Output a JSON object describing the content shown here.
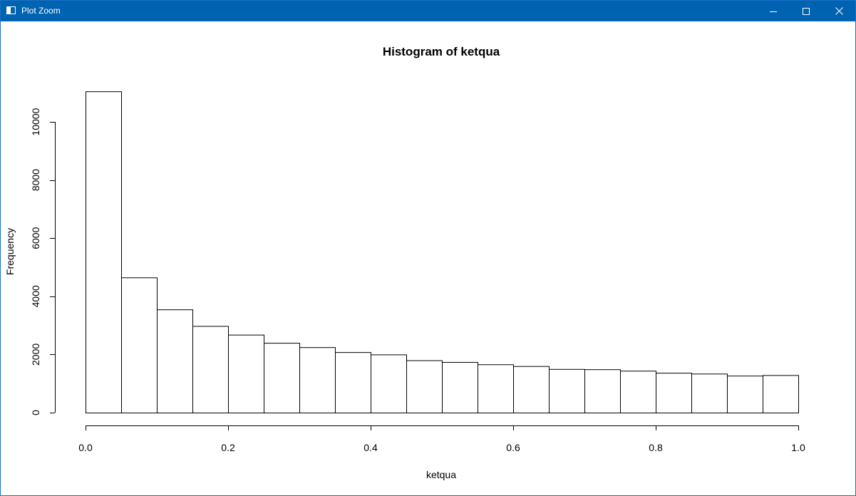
{
  "window": {
    "title": "Plot Zoom",
    "icons": {
      "app": "plot-window-icon",
      "minimize": "minimize-icon",
      "maximize": "maximize-icon",
      "close": "close-icon"
    },
    "titlebar_color": "#0063b1"
  },
  "chart_data": {
    "type": "bar",
    "title": "Histogram of ketqua",
    "xlabel": "ketqua",
    "ylabel": "Frequency",
    "bin_edges": [
      0.0,
      0.05,
      0.1,
      0.15,
      0.2,
      0.25,
      0.3,
      0.35,
      0.4,
      0.45,
      0.5,
      0.55,
      0.6,
      0.65,
      0.7,
      0.75,
      0.8,
      0.85,
      0.9,
      0.95,
      1.0
    ],
    "values": [
      11050,
      4650,
      3550,
      2980,
      2680,
      2400,
      2250,
      2080,
      2000,
      1800,
      1740,
      1660,
      1600,
      1500,
      1490,
      1440,
      1370,
      1340,
      1270,
      1290
    ],
    "xlim": [
      0,
      1
    ],
    "ylim": [
      0,
      11050
    ],
    "xticks": [
      0.0,
      0.2,
      0.4,
      0.6,
      0.8,
      1.0
    ],
    "xtick_labels": [
      "0.0",
      "0.2",
      "0.4",
      "0.6",
      "0.8",
      "1.0"
    ],
    "yticks": [
      0,
      2000,
      4000,
      6000,
      8000,
      10000
    ],
    "ytick_labels": [
      "0",
      "2000",
      "4000",
      "6000",
      "8000",
      "10000"
    ],
    "bar_fill": "#ffffff",
    "bar_stroke": "#000000",
    "grid": false,
    "legend": "none"
  }
}
